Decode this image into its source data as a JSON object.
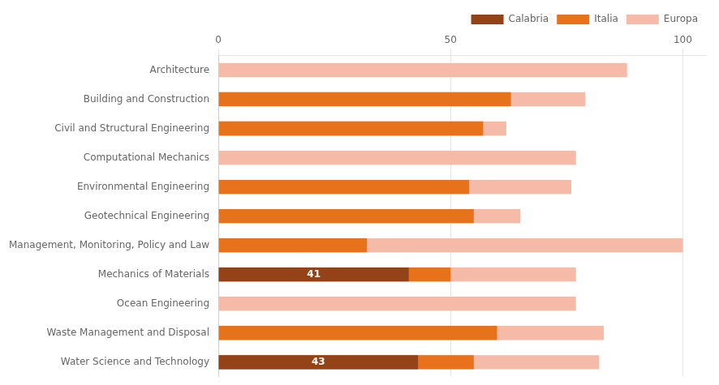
{
  "chart_data": {
    "type": "bar",
    "orientation": "horizontal",
    "categories": [
      "Architecture",
      "Building and Construction",
      "Civil and Structural Engineering",
      "Computational Mechanics",
      "Environmental Engineering",
      "Geotechnical Engineering",
      "Management, Monitoring, Policy and Law",
      "Mechanics of Materials",
      "Ocean Engineering",
      "Waste Management and Disposal",
      "Water Science and Technology"
    ],
    "series": [
      {
        "name": "Europa",
        "color": "#f5baa8",
        "values": [
          88,
          79,
          62,
          77,
          76,
          65,
          100,
          77,
          77,
          83,
          82
        ]
      },
      {
        "name": "Italia",
        "color": "#e8721c",
        "values": [
          0,
          63,
          57,
          0,
          54,
          55,
          32,
          50,
          0,
          60,
          55
        ]
      },
      {
        "name": "Calabria",
        "color": "#944218",
        "values": [
          0,
          0,
          0,
          0,
          0,
          0,
          0,
          41,
          0,
          0,
          43
        ],
        "data_labels": true
      }
    ],
    "xlim": [
      0,
      105
    ],
    "xticks": [
      0,
      50,
      100
    ],
    "grid": true,
    "legend": "upper right"
  }
}
